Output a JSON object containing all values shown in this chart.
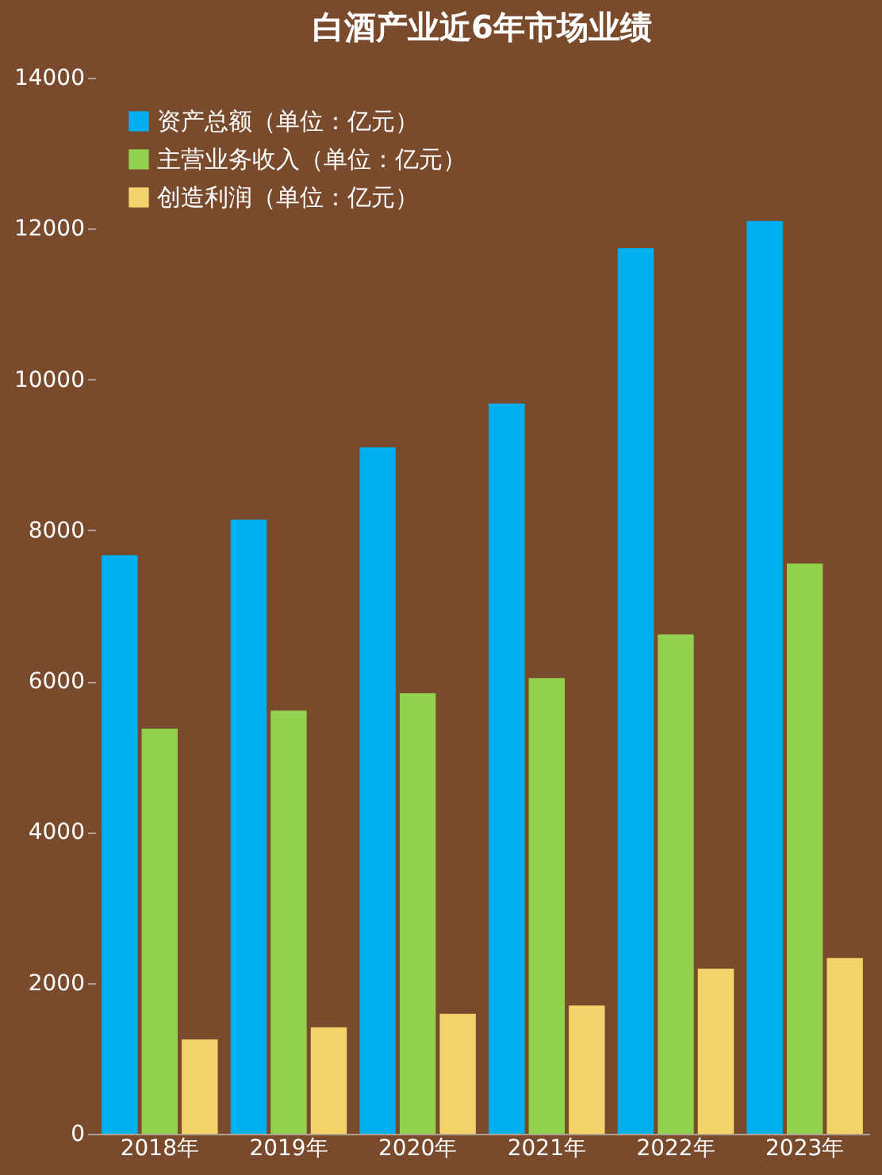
{
  "chart_data": {
    "type": "bar",
    "title": "白酒产业近6年市场业绩",
    "categories": [
      "2018年",
      "2019年",
      "2020年",
      "2021年",
      "2022年",
      "2023年"
    ],
    "series": [
      {
        "name": "资产总额（单位：亿元）",
        "color": "#00b0f0",
        "values": [
          7670,
          8140,
          9100,
          9680,
          11740,
          12100
        ]
      },
      {
        "name": "主营业务收入（单位：亿元）",
        "color": "#92d050",
        "values": [
          5370,
          5610,
          5840,
          6040,
          6620,
          7560
        ]
      },
      {
        "name": "创造利润（单位：亿元）",
        "color": "#f2d46b",
        "values": [
          1250,
          1410,
          1590,
          1700,
          2190,
          2330
        ]
      }
    ],
    "ylim": [
      0,
      14000
    ],
    "yticks": [
      0,
      2000,
      4000,
      6000,
      8000,
      10000,
      12000,
      14000
    ],
    "grid": false,
    "legend": "top left"
  }
}
